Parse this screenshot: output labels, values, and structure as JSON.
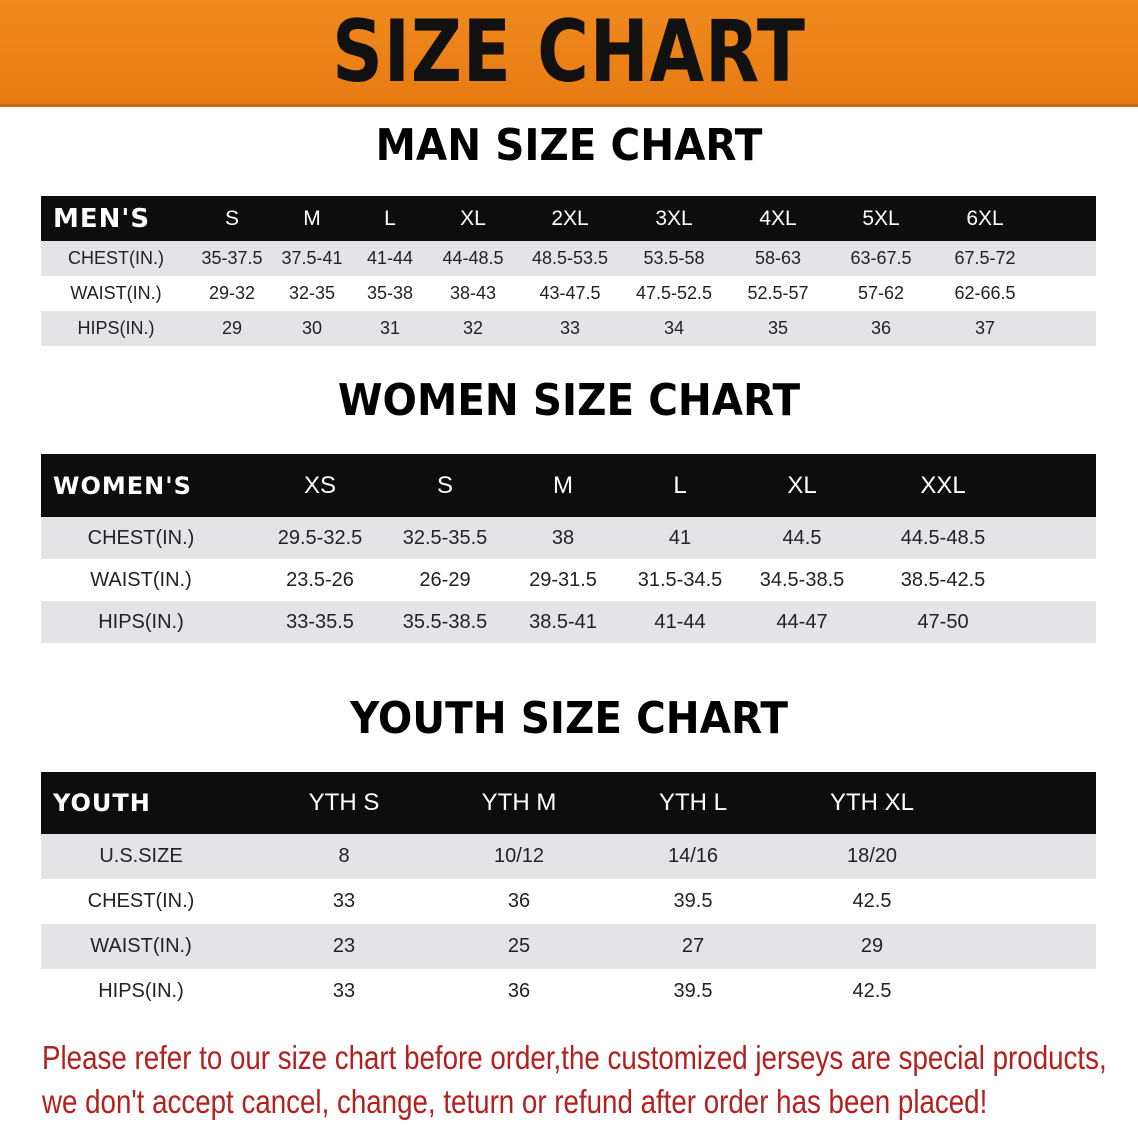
{
  "banner": {
    "title": "SIZE CHART",
    "color": "#ec8219"
  },
  "men": {
    "title": "MAN SIZE CHART",
    "header": [
      "MEN'S",
      "S",
      "M",
      "L",
      "XL",
      "2XL",
      "3XL",
      "4XL",
      "5XL",
      "6XL"
    ],
    "rows": [
      [
        "CHEST(IN.)",
        "35-37.5",
        "37.5-41",
        "41-44",
        "44-48.5",
        "48.5-53.5",
        "53.5-58",
        "58-63",
        "63-67.5",
        "67.5-72"
      ],
      [
        "WAIST(IN.)",
        "29-32",
        "32-35",
        "35-38",
        "38-43",
        "43-47.5",
        "47.5-52.5",
        "52.5-57",
        "57-62",
        "62-66.5"
      ],
      [
        "HIPS(IN.)",
        "29",
        "30",
        "31",
        "32",
        "33",
        "34",
        "35",
        "36",
        "37"
      ]
    ]
  },
  "women": {
    "title": "WOMEN SIZE CHART",
    "header": [
      "WOMEN'S",
      "XS",
      "S",
      "M",
      "L",
      "XL",
      "XXL"
    ],
    "rows": [
      [
        "CHEST(IN.)",
        "29.5-32.5",
        "32.5-35.5",
        "38",
        "41",
        "44.5",
        "44.5-48.5"
      ],
      [
        "WAIST(IN.)",
        "23.5-26",
        "26-29",
        "29-31.5",
        "31.5-34.5",
        "34.5-38.5",
        "38.5-42.5"
      ],
      [
        "HIPS(IN.)",
        "33-35.5",
        "35.5-38.5",
        "38.5-41",
        "41-44",
        "44-47",
        "47-50"
      ]
    ]
  },
  "youth": {
    "title": "YOUTH SIZE CHART",
    "header": [
      "YOUTH",
      "YTH S",
      "YTH M",
      "YTH L",
      "YTH XL"
    ],
    "rows": [
      [
        "U.S.SIZE",
        "8",
        "10/12",
        "14/16",
        "18/20"
      ],
      [
        "CHEST(IN.)",
        "33",
        "36",
        "39.5",
        "42.5"
      ],
      [
        "WAIST(IN.)",
        "23",
        "25",
        "27",
        "29"
      ],
      [
        "HIPS(IN.)",
        "33",
        "36",
        "39.5",
        "42.5"
      ]
    ]
  },
  "note": {
    "line1": "Please refer to our size chart before order,the customized jerseys are special products,",
    "line2": "we don't accept cancel, change, teturn or refund after order has been placed!",
    "color": "#b3201f"
  }
}
